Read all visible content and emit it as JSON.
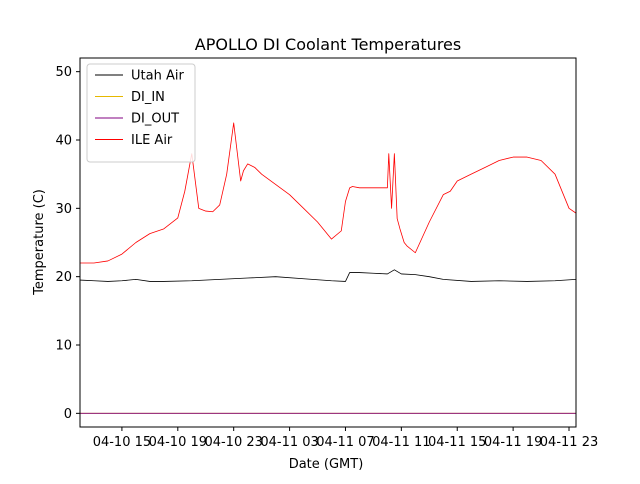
{
  "chart_data": {
    "type": "line",
    "title": "APOLLO DI Coolant Temperatures",
    "xlabel": "Date (GMT)",
    "ylabel": "Temperature (C)",
    "x_unit": "hours since 04-10 12:00 GMT",
    "xlim": [
      0,
      35.5
    ],
    "ylim": [
      -2,
      52
    ],
    "yticks": [
      0,
      10,
      20,
      30,
      40,
      50
    ],
    "yticklabels": [
      "0",
      "10",
      "20",
      "30",
      "40",
      "50"
    ],
    "xticks": [
      3,
      7,
      11,
      15,
      19,
      23,
      27,
      31,
      35
    ],
    "xticklabels": [
      "04-10 15",
      "04-10 19",
      "04-10 23",
      "04-11 03",
      "04-11 07",
      "04-11 11",
      "04-11 15",
      "04-11 19",
      "04-11 23"
    ],
    "legend_position": "upper-left",
    "grid": false,
    "series": [
      {
        "name": "Utah Air",
        "color": "#000000",
        "x": [
          0,
          1,
          2,
          3,
          4,
          5,
          6,
          8,
          10,
          12,
          14,
          16,
          18,
          19,
          19.3,
          20,
          21,
          22,
          22.5,
          23,
          24,
          25,
          26,
          28,
          30,
          32,
          34,
          35.5
        ],
        "y": [
          19.5,
          19.4,
          19.3,
          19.4,
          19.6,
          19.3,
          19.3,
          19.4,
          19.6,
          19.8,
          20,
          19.7,
          19.4,
          19.3,
          20.6,
          20.6,
          20.5,
          20.4,
          21.0,
          20.4,
          20.3,
          20.0,
          19.6,
          19.3,
          19.4,
          19.3,
          19.4,
          19.6
        ]
      },
      {
        "name": "DI_IN",
        "color": "#e6b800",
        "x": [
          0,
          35.5
        ],
        "y": [
          0,
          0
        ]
      },
      {
        "name": "DI_OUT",
        "color": "#800080",
        "x": [
          0,
          35.5
        ],
        "y": [
          0,
          0
        ]
      },
      {
        "name": "ILE Air",
        "color": "#ff0000",
        "x": [
          0,
          1,
          2,
          3,
          4,
          5,
          6,
          7,
          7.5,
          8,
          8.5,
          9,
          9.5,
          10,
          10.5,
          11,
          11.5,
          11.7,
          12,
          12.5,
          13,
          14,
          15,
          16,
          17,
          18,
          18.7,
          19,
          19.3,
          19.5,
          20,
          21,
          22,
          22.1,
          22.3,
          22.5,
          22.7,
          22.9,
          23.2,
          23.4,
          24,
          25,
          26,
          26.5,
          27,
          28,
          29,
          30,
          31,
          32,
          33,
          34,
          35,
          35.5
        ],
        "y": [
          22,
          22,
          22.3,
          23.3,
          25,
          26.3,
          27,
          28.6,
          32.5,
          38,
          30,
          29.6,
          29.5,
          30.5,
          35,
          42.5,
          34,
          35.5,
          36.5,
          36,
          35,
          33.5,
          32,
          30,
          28,
          25.5,
          26.7,
          31,
          33,
          33.2,
          33,
          33,
          33,
          38,
          30,
          38,
          28.5,
          27,
          25,
          24.5,
          23.5,
          28,
          32,
          32.5,
          34,
          35,
          36,
          37,
          37.5,
          37.5,
          37,
          35,
          30,
          29.3
        ]
      }
    ]
  }
}
